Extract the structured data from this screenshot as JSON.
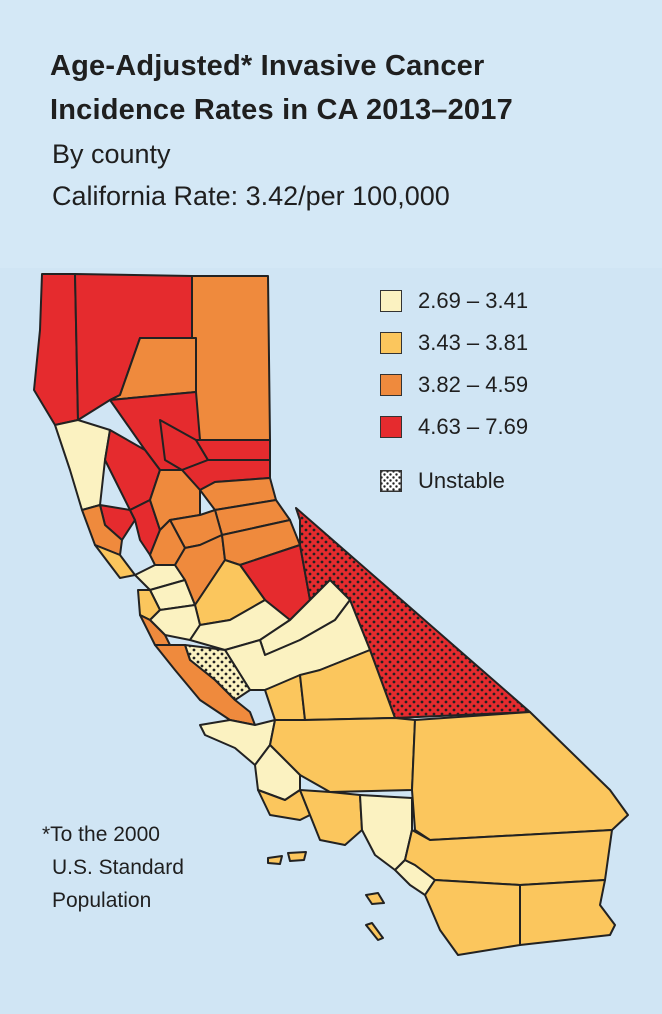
{
  "title_line1": "Age-Adjusted* Invasive Cancer",
  "title_line2": "Incidence Rates in CA 2013–2017",
  "subtitle": "By county",
  "state_rate": "California Rate: 3.42/per 100,000",
  "legend": [
    {
      "label": "2.69 – 3.41",
      "color": "#fbf2c1"
    },
    {
      "label": "3.43 – 3.81",
      "color": "#fbc65d"
    },
    {
      "label": "3.82 – 4.59",
      "color": "#ef8a3d"
    },
    {
      "label": "4.63 – 7.69",
      "color": "#e52b2e"
    }
  ],
  "unstable_label": "Unstable",
  "footnote": [
    "*To the 2000",
    "U.S. Standard",
    "Population"
  ],
  "colors": {
    "background": "#d4e8f6",
    "low": "#fbf2c1",
    "mid_low": "#fbc65d",
    "mid_high": "#ef8a3d",
    "high": "#e52b2e",
    "border": "#222222"
  }
}
